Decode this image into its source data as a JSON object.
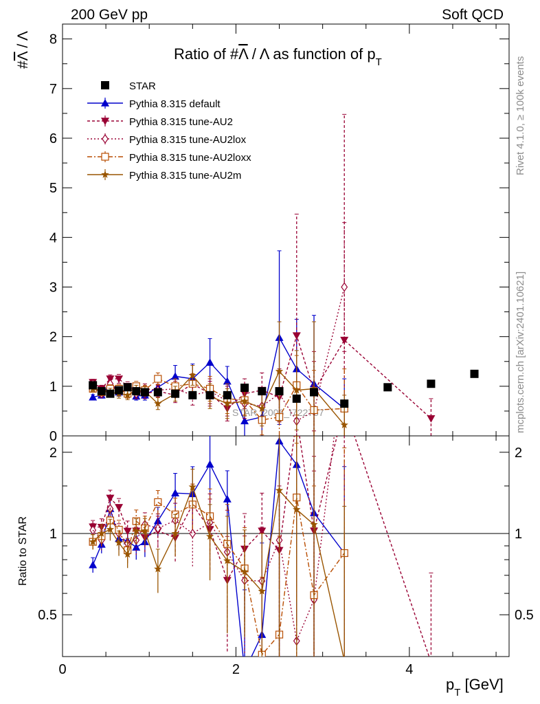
{
  "header": {
    "left": "200 GeV pp",
    "right": "Soft QCD",
    "side_top": "Rivet 4.1.0, ≥ 100k events",
    "side_bottom": "mcplots.cern.ch [arXiv:2401.10621]"
  },
  "chart_data": {
    "type": "scatter",
    "title_prefix": "Ratio of #",
    "title_sym1": "Λ",
    "title_mid": " / Λ as function of p",
    "title_sub": "T",
    "ylabel_prefix": "#",
    "ylabel_sym": "Λ",
    "ylabel_suffix": " / Λ",
    "ratio_ylabel": "Ratio to STAR",
    "xlabel_main": "p",
    "xlabel_sub": "T",
    "xlabel_unit": " [GeV]",
    "watermark": "STAR_2006_I722757",
    "xlim": [
      0,
      5.15
    ],
    "ylim_main": [
      0,
      8.3
    ],
    "ylim_ratio": [
      0.35,
      2.3
    ],
    "x_ticks": [
      0,
      2,
      4
    ],
    "x_tick_labels": [
      "0",
      "2",
      "4"
    ],
    "y_ticks_main": [
      0,
      1,
      2,
      3,
      4,
      5,
      6,
      7,
      8
    ],
    "y_tick_labels_main": [
      "0",
      "1",
      "2",
      "3",
      "4",
      "5",
      "6",
      "7",
      "8"
    ],
    "y_ticks_ratio": [
      0.5,
      1,
      2
    ],
    "y_tick_labels_ratio": [
      "0.5",
      "1",
      "2"
    ],
    "reference": {
      "name": "STAR",
      "color": "#000000",
      "x": [
        0.35,
        0.45,
        0.55,
        0.65,
        0.75,
        0.85,
        0.95,
        1.1,
        1.3,
        1.5,
        1.7,
        1.9,
        2.1,
        2.3,
        2.5,
        2.7,
        2.9,
        3.25,
        3.75,
        4.25,
        4.75
      ],
      "y": [
        1.02,
        0.9,
        0.85,
        0.92,
        0.98,
        0.9,
        0.88,
        0.88,
        0.85,
        0.82,
        0.82,
        0.82,
        0.97,
        0.9,
        0.9,
        0.75,
        0.88,
        0.65,
        0.98,
        1.05,
        1.25
      ]
    },
    "series": [
      {
        "name": "Pythia 8.315 default",
        "color": "#0000cc",
        "marker": "triangle-up",
        "dash": "",
        "x": [
          0.35,
          0.45,
          0.55,
          0.65,
          0.75,
          0.85,
          0.95,
          1.1,
          1.3,
          1.5,
          1.7,
          1.9,
          2.1,
          2.3,
          2.5,
          2.7,
          2.9,
          3.25
        ],
        "y": [
          0.78,
          0.82,
          1.05,
          0.88,
          0.92,
          0.8,
          0.82,
          0.98,
          1.2,
          1.15,
          1.48,
          1.1,
          0.3,
          0.38,
          1.98,
          1.35,
          1.05,
          0.55
        ],
        "err": [
          0.05,
          0.06,
          0.08,
          0.08,
          0.08,
          0.08,
          0.1,
          0.12,
          0.22,
          0.3,
          0.48,
          0.3,
          0.3,
          0.45,
          1.75,
          1.0,
          1.38,
          0.6
        ]
      },
      {
        "name": "Pythia 8.315 tune-AU2",
        "color": "#990033",
        "marker": "triangle-down",
        "dash": "4,3",
        "x": [
          0.35,
          0.45,
          0.55,
          0.65,
          0.75,
          0.85,
          0.95,
          1.1,
          1.3,
          1.5,
          1.7,
          1.9,
          2.1,
          2.3,
          2.5,
          2.7,
          2.9,
          3.25,
          4.25
        ],
        "y": [
          1.08,
          0.95,
          1.15,
          1.15,
          1.0,
          0.92,
          0.85,
          0.9,
          0.82,
          1.05,
          0.85,
          0.55,
          0.85,
          0.92,
          0.78,
          2.02,
          0.9,
          1.93,
          0.35
        ],
        "err": [
          0.06,
          0.07,
          0.08,
          0.09,
          0.09,
          0.1,
          0.1,
          0.12,
          0.15,
          0.2,
          0.25,
          0.25,
          0.3,
          0.35,
          0.5,
          2.45,
          0.8,
          4.55,
          0.4
        ]
      },
      {
        "name": "Pythia 8.315 tune-AU2lox",
        "color": "#990033",
        "marker": "diamond-open",
        "dash": "2,3",
        "x": [
          0.35,
          0.45,
          0.55,
          0.65,
          0.75,
          0.85,
          0.95,
          1.1,
          1.3,
          1.5,
          1.7,
          1.9,
          2.1,
          2.3,
          2.5,
          2.7,
          2.9,
          3.25
        ],
        "y": [
          1.05,
          0.85,
          1.05,
          0.92,
          0.9,
          0.85,
          0.95,
          0.92,
          0.95,
          0.82,
          0.9,
          0.7,
          0.65,
          0.6,
          0.85,
          0.3,
          0.5,
          3.0
        ],
        "err": [
          0.06,
          0.07,
          0.08,
          0.08,
          0.1,
          0.1,
          0.1,
          0.12,
          0.15,
          0.2,
          0.25,
          0.3,
          0.3,
          0.35,
          0.5,
          0.7,
          1.0,
          1.3
        ]
      },
      {
        "name": "Pythia 8.315 tune-AU2loxx",
        "color": "#b84c00",
        "marker": "square-open",
        "dash": "7,3,2,3",
        "x": [
          0.35,
          0.45,
          0.55,
          0.65,
          0.75,
          0.85,
          0.95,
          1.1,
          1.3,
          1.5,
          1.7,
          1.9,
          2.1,
          2.3,
          2.5,
          2.7,
          2.9,
          3.25
        ],
        "y": [
          0.95,
          0.88,
          0.95,
          0.95,
          0.85,
          1.0,
          0.92,
          1.15,
          1.0,
          1.05,
          0.95,
          0.75,
          0.72,
          0.32,
          0.38,
          1.02,
          0.52,
          0.55
        ],
        "err": [
          0.06,
          0.07,
          0.08,
          0.08,
          0.09,
          0.1,
          0.1,
          0.12,
          0.15,
          0.2,
          0.25,
          0.3,
          0.3,
          0.3,
          0.5,
          0.6,
          0.8,
          0.8
        ]
      },
      {
        "name": "Pythia 8.315 tune-AU2m",
        "color": "#995500",
        "marker": "star",
        "dash": "",
        "x": [
          0.35,
          0.45,
          0.55,
          0.65,
          0.75,
          0.85,
          0.95,
          1.1,
          1.3,
          1.5,
          1.7,
          1.9,
          2.1,
          2.3,
          2.5,
          2.7,
          2.9,
          3.25
        ],
        "y": [
          0.95,
          0.9,
          0.88,
          0.85,
          0.82,
          0.92,
          0.9,
          0.65,
          0.85,
          1.22,
          0.8,
          0.65,
          0.7,
          0.55,
          1.3,
          0.92,
          0.95,
          0.22
        ],
        "err": [
          0.06,
          0.07,
          0.08,
          0.09,
          0.09,
          0.1,
          0.1,
          0.12,
          0.15,
          0.2,
          0.25,
          0.3,
          0.3,
          0.35,
          1.0,
          0.8,
          1.35,
          0.6
        ]
      }
    ]
  }
}
